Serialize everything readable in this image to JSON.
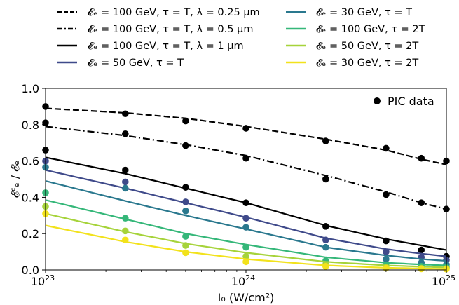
{
  "chart_data": {
    "type": "line",
    "xscale": "log",
    "xlim": [
      1e+23,
      1e+25
    ],
    "ylim": [
      0,
      1.0
    ],
    "xlabel": "I₀ (W/cm²)",
    "ylabel": "𝓔ᶜₑ / 𝓔ₑ",
    "xticks": [
      {
        "value": 1e+23,
        "base": "10",
        "exp": "23"
      },
      {
        "value": 1e+24,
        "base": "10",
        "exp": "24"
      },
      {
        "value": 1e+25,
        "base": "10",
        "exp": "25"
      }
    ],
    "yticks": [
      "0.0",
      "0.2",
      "0.4",
      "0.6",
      "0.8",
      "1.0"
    ],
    "ytick_values": [
      0,
      0.2,
      0.4,
      0.6,
      0.8,
      1.0
    ],
    "grid": false,
    "legend_placement": "top (above plot), two columns",
    "marker_legend": {
      "label": "PIC data",
      "placement": "top-right inside plot"
    },
    "pic_x": [
      1e+23,
      2.5e+23,
      5e+23,
      1e+24,
      2.5e+24,
      5e+24,
      7.5e+24,
      1e+25
    ],
    "series": [
      {
        "name": "𝓔ₑ = 100 GeV, τ = T, λ = 0.25 μm",
        "color": "#000000",
        "dash": "dashed",
        "x": [
          1e+23,
          2.5e+23,
          5e+23,
          1e+24,
          2.5e+24,
          5e+24,
          7.5e+24,
          1e+25
        ],
        "y": [
          0.89,
          0.865,
          0.835,
          0.79,
          0.72,
          0.66,
          0.61,
          0.58
        ],
        "pic": [
          0.9,
          0.86,
          0.82,
          0.78,
          0.71,
          0.67,
          0.615,
          0.6
        ]
      },
      {
        "name": "𝓔ₑ = 100 GeV, τ = T, λ = 0.5 μm",
        "color": "#000000",
        "dash": "dashdot",
        "x": [
          1e+23,
          2.5e+23,
          5e+23,
          1e+24,
          2.5e+24,
          5e+24,
          7.5e+24,
          1e+25
        ],
        "y": [
          0.79,
          0.74,
          0.69,
          0.63,
          0.52,
          0.43,
          0.37,
          0.335
        ],
        "pic": [
          0.81,
          0.75,
          0.685,
          0.615,
          0.5,
          0.415,
          0.37,
          0.335
        ]
      },
      {
        "name": "𝓔ₑ = 100 GeV, τ = T, λ = 1 μm",
        "color": "#000000",
        "dash": "solid",
        "x": [
          1e+23,
          2.5e+23,
          5e+23,
          1e+24,
          2.5e+24,
          5e+24,
          7.5e+24,
          1e+25
        ],
        "y": [
          0.62,
          0.53,
          0.45,
          0.37,
          0.245,
          0.17,
          0.135,
          0.11
        ],
        "pic": [
          0.66,
          0.55,
          0.455,
          0.37,
          0.24,
          0.16,
          0.11,
          0.075
        ]
      },
      {
        "name": "𝓔ₑ = 50 GeV, τ = T",
        "color": "#3f4a8a",
        "dash": "solid",
        "x": [
          1e+23,
          2.5e+23,
          5e+23,
          1e+24,
          2.5e+24,
          5e+24,
          7.5e+24,
          1e+25
        ],
        "y": [
          0.55,
          0.45,
          0.37,
          0.29,
          0.175,
          0.115,
          0.09,
          0.075
        ],
        "pic": [
          0.6,
          0.485,
          0.375,
          0.285,
          0.165,
          0.1,
          0.07,
          0.055
        ]
      },
      {
        "name": "𝓔ₑ = 30 GeV, τ = T",
        "color": "#2a788e",
        "dash": "solid",
        "x": [
          1e+23,
          2.5e+23,
          5e+23,
          1e+24,
          2.5e+24,
          5e+24,
          7.5e+24,
          1e+25
        ],
        "y": [
          0.49,
          0.38,
          0.3,
          0.225,
          0.125,
          0.08,
          0.06,
          0.05
        ],
        "pic": [
          0.565,
          0.45,
          0.325,
          0.235,
          0.125,
          0.06,
          0.04,
          0.03
        ]
      },
      {
        "name": "𝓔ₑ = 100 GeV, τ = 2T",
        "color": "#35b779",
        "dash": "solid",
        "x": [
          1e+23,
          2.5e+23,
          5e+23,
          1e+24,
          2.5e+24,
          5e+24,
          7.5e+24,
          1e+25
        ],
        "y": [
          0.385,
          0.28,
          0.2,
          0.14,
          0.07,
          0.04,
          0.03,
          0.025
        ],
        "pic": [
          0.425,
          0.285,
          0.185,
          0.125,
          0.05,
          0.025,
          0.02,
          0.015
        ]
      },
      {
        "name": "𝓔ₑ = 50 GeV, τ = 2T",
        "color": "#a6d33a",
        "dash": "solid",
        "x": [
          1e+23,
          2.5e+23,
          5e+23,
          1e+24,
          2.5e+24,
          5e+24,
          7.5e+24,
          1e+25
        ],
        "y": [
          0.31,
          0.21,
          0.145,
          0.095,
          0.045,
          0.025,
          0.018,
          0.014
        ],
        "pic": [
          0.35,
          0.215,
          0.135,
          0.075,
          0.03,
          0.015,
          0.01,
          0.008
        ]
      },
      {
        "name": "𝓔ₑ = 30 GeV, τ = 2T",
        "color": "#f2e21c",
        "dash": "solid",
        "x": [
          1e+23,
          2.5e+23,
          5e+23,
          1e+24,
          2.5e+24,
          5e+24,
          7.5e+24,
          1e+25
        ],
        "y": [
          0.245,
          0.155,
          0.1,
          0.06,
          0.025,
          0.012,
          0.008,
          0.006
        ],
        "pic": [
          0.31,
          0.165,
          0.095,
          0.045,
          0.02,
          0.01,
          0.006,
          0.005
        ]
      }
    ]
  }
}
